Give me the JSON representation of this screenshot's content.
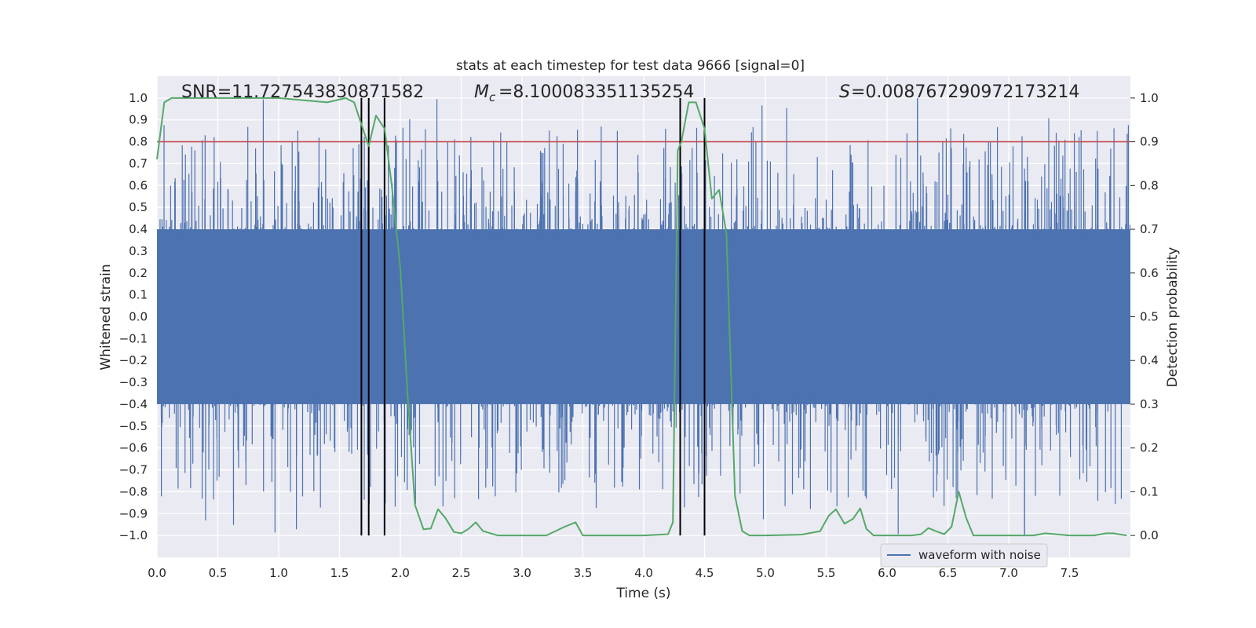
{
  "chart_data": {
    "type": "line",
    "title": "stats at each timestep for test data 9666 [signal=0]",
    "xlabel": "Time (s)",
    "ylabel": "Whitened strain",
    "y2label": "Detection probability",
    "xlim": [
      0.0,
      8.0
    ],
    "ylim": [
      -1.1,
      1.1
    ],
    "y2lim": [
      -0.05,
      1.05
    ],
    "xticks": [
      "0.0",
      "0.5",
      "1.0",
      "1.5",
      "2.0",
      "2.5",
      "3.0",
      "3.5",
      "4.0",
      "4.5",
      "5.0",
      "5.5",
      "6.0",
      "6.5",
      "7.0",
      "7.5"
    ],
    "yticks": [
      "1.0",
      "0.9",
      "0.8",
      "0.7",
      "0.6",
      "0.5",
      "0.4",
      "0.3",
      "0.2",
      "0.1",
      "0.0",
      "−0.1",
      "−0.2",
      "−0.3",
      "−0.4",
      "−0.5",
      "−0.6",
      "−0.7",
      "−0.8",
      "−0.9",
      "−1.0"
    ],
    "y2ticks": [
      "1.0",
      "0.9",
      "0.8",
      "0.7",
      "0.6",
      "0.5",
      "0.4",
      "0.3",
      "0.2",
      "0.1",
      "0.0"
    ],
    "annotations": {
      "snr": "SNR=11.727543830871582",
      "mc_value": "=8.100083351135254",
      "s_value": "=0.008767290972173214"
    },
    "legend": {
      "label": "waveform with noise",
      "placement": "lower-right"
    },
    "threshold": 0.9,
    "vlines": [
      1.68,
      1.74,
      1.87,
      4.3,
      4.5
    ],
    "waveform": {
      "name": "waveform with noise",
      "color": "#4c72b0",
      "typical_amplitude": 0.4,
      "max_amplitude": 1.0,
      "min_amplitude": -1.0
    },
    "series": [
      {
        "name": "detection probability",
        "color": "#55a868",
        "x": [
          0.0,
          0.06,
          0.12,
          0.5,
          1.0,
          1.4,
          1.55,
          1.62,
          1.68,
          1.74,
          1.8,
          1.87,
          1.93,
          2.0,
          2.06,
          2.12,
          2.19,
          2.25,
          2.31,
          2.37,
          2.44,
          2.5,
          2.56,
          2.62,
          2.68,
          2.8,
          3.0,
          3.2,
          3.35,
          3.44,
          3.5,
          3.65,
          3.75,
          4.0,
          4.2,
          4.24,
          4.28,
          4.31,
          4.37,
          4.43,
          4.5,
          4.56,
          4.62,
          4.68,
          4.75,
          4.81,
          4.87,
          5.0,
          5.3,
          5.45,
          5.52,
          5.58,
          5.65,
          5.72,
          5.78,
          5.83,
          5.89,
          6.0,
          6.2,
          6.28,
          6.34,
          6.4,
          6.47,
          6.53,
          6.59,
          6.65,
          6.71,
          6.77,
          7.0,
          7.2,
          7.3,
          7.5,
          7.7,
          7.8,
          7.86,
          7.9,
          7.97
        ],
        "values": [
          0.86,
          0.99,
          1.0,
          1.0,
          1.0,
          0.99,
          1.0,
          0.99,
          0.94,
          0.89,
          0.96,
          0.93,
          0.8,
          0.61,
          0.32,
          0.07,
          0.014,
          0.016,
          0.06,
          0.04,
          0.008,
          0.005,
          0.015,
          0.03,
          0.01,
          0.0,
          0.0,
          0.0,
          0.02,
          0.03,
          0.0,
          0.0,
          0.0,
          0.0,
          0.003,
          0.03,
          0.88,
          0.9,
          0.99,
          0.99,
          0.93,
          0.77,
          0.79,
          0.69,
          0.09,
          0.01,
          0.0,
          0.0,
          0.002,
          0.01,
          0.045,
          0.06,
          0.027,
          0.038,
          0.062,
          0.015,
          0.0,
          0.0,
          0.0,
          0.003,
          0.017,
          0.01,
          0.003,
          0.02,
          0.1,
          0.04,
          0.0,
          0.0,
          0.0,
          0.0,
          0.005,
          0.0,
          0.0,
          0.005,
          0.005,
          0.003,
          0.0
        ]
      },
      {
        "name": "threshold",
        "color": "#c44e52",
        "x": [
          0.0,
          8.0
        ],
        "values": [
          0.9,
          0.9
        ]
      }
    ]
  }
}
